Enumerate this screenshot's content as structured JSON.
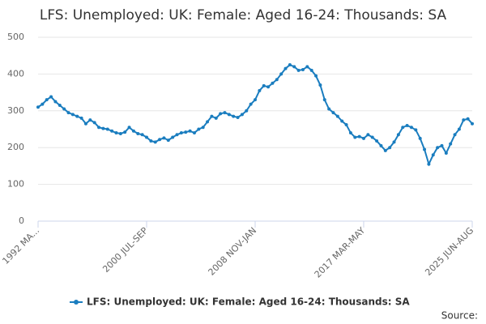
{
  "chart_data": {
    "type": "line",
    "title": "LFS: Unemployed: UK: Female: Aged 16-24: Thousands: SA",
    "source": "Source:",
    "categories": [
      "1992 MA...",
      null,
      null,
      null,
      null,
      null,
      null,
      null,
      null,
      null,
      null,
      null,
      null,
      null,
      null,
      null,
      null,
      null,
      null,
      null,
      null,
      null,
      null,
      null,
      null,
      "2000 JUL-SEP",
      null,
      null,
      null,
      null,
      null,
      null,
      null,
      null,
      null,
      null,
      null,
      null,
      null,
      null,
      null,
      null,
      null,
      null,
      null,
      null,
      null,
      null,
      null,
      null,
      "2008 NOV-JAN",
      null,
      null,
      null,
      null,
      null,
      null,
      null,
      null,
      null,
      null,
      null,
      null,
      null,
      null,
      null,
      null,
      null,
      null,
      null,
      null,
      null,
      null,
      null,
      null,
      "2017 MAR-MAY",
      null,
      null,
      null,
      null,
      null,
      null,
      null,
      null,
      null,
      null,
      null,
      null,
      null,
      null,
      null,
      null,
      null,
      null,
      null,
      null,
      null,
      null,
      null,
      null,
      "2025 JUN-AUG"
    ],
    "series": [
      {
        "name": "LFS: Unemployed: UK: Female: Aged 16-24: Thousands: SA",
        "color": "#1a7dbf",
        "values": [
          310,
          318,
          330,
          338,
          325,
          315,
          305,
          295,
          290,
          285,
          280,
          265,
          275,
          268,
          255,
          252,
          250,
          245,
          240,
          238,
          242,
          255,
          245,
          238,
          235,
          228,
          218,
          215,
          222,
          226,
          220,
          228,
          235,
          240,
          242,
          245,
          240,
          250,
          255,
          270,
          285,
          280,
          292,
          295,
          290,
          285,
          282,
          290,
          300,
          318,
          330,
          355,
          368,
          365,
          375,
          385,
          400,
          415,
          425,
          420,
          410,
          412,
          420,
          410,
          395,
          370,
          330,
          305,
          295,
          285,
          272,
          262,
          240,
          228,
          230,
          225,
          235,
          228,
          218,
          205,
          192,
          200,
          215,
          235,
          255,
          260,
          255,
          248,
          225,
          195,
          155,
          180,
          200,
          205,
          185,
          210,
          235,
          250,
          275,
          278,
          265
        ]
      }
    ],
    "ylim": [
      0,
      500
    ],
    "yticks": [
      0,
      100,
      200,
      300,
      400,
      500
    ],
    "grid": true
  }
}
